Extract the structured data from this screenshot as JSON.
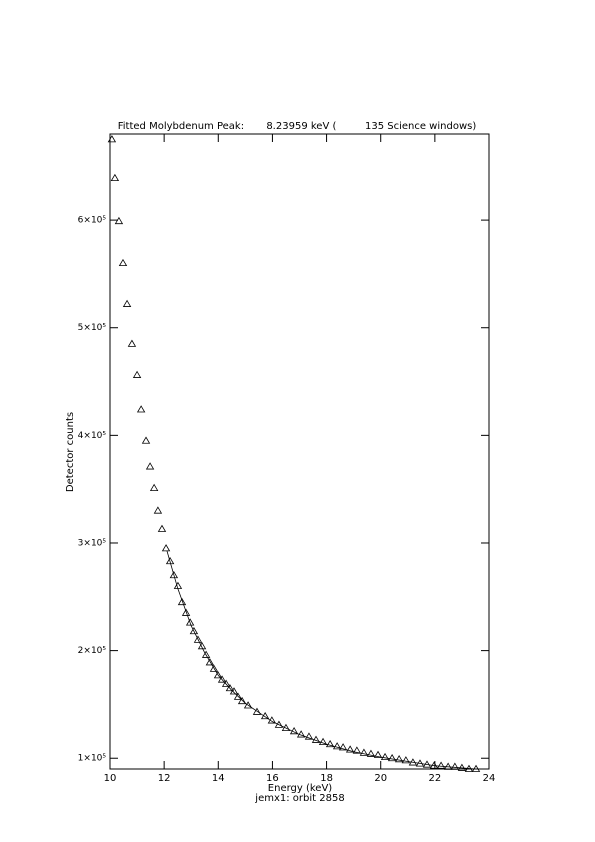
{
  "chart_data": {
    "type": "scatter",
    "title": "Fitted Molybdenum Peak:       8.23959 keV (         135 Science windows)",
    "x_label": "Energy (keV)",
    "subtitle": "jemx1: orbit 2858",
    "y_label": "Detector counts",
    "xlim": [
      10,
      24
    ],
    "xticks": [
      10,
      12,
      14,
      16,
      18,
      20,
      22,
      24
    ],
    "ylim": [
      90000,
      680000
    ],
    "yticks": [
      {
        "value": 100000,
        "label": "1×10⁵"
      },
      {
        "value": 200000,
        "label": "2×10⁵"
      },
      {
        "value": 300000,
        "label": "3×10⁵"
      },
      {
        "value": 400000,
        "label": "4×10⁵"
      },
      {
        "value": 500000,
        "label": "5×10⁵"
      },
      {
        "value": 600000,
        "label": "6×10⁵"
      }
    ],
    "color": "#000000",
    "series": [
      {
        "marker": "triangle",
        "x": [
          10.07,
          10.18,
          10.33,
          10.48,
          10.63,
          10.81,
          11.0,
          11.15,
          11.33,
          11.48,
          11.63,
          11.77,
          11.92,
          12.07,
          12.22,
          12.36,
          12.51,
          12.66,
          12.81,
          12.96,
          13.1,
          13.25,
          13.4,
          13.55,
          13.69,
          13.84,
          13.99,
          14.14,
          14.29,
          14.43,
          14.58,
          14.73,
          14.88,
          15.1,
          15.43,
          15.73,
          15.98,
          16.24,
          16.5,
          16.8,
          17.06,
          17.35,
          17.61,
          17.87,
          18.13,
          18.39,
          18.61,
          18.87,
          19.12,
          19.38,
          19.64,
          19.9,
          20.16,
          20.42,
          20.68,
          20.93,
          21.19,
          21.45,
          21.71,
          21.97,
          22.23,
          22.49,
          22.74,
          23.0,
          23.26,
          23.52
        ],
        "values": [
          675000,
          639000,
          599000,
          560000,
          522000,
          485000,
          456000,
          424000,
          395000,
          371000,
          351000,
          330000,
          313000,
          295000,
          283000,
          270000,
          260000,
          245000,
          235000,
          226000,
          218000,
          210000,
          204000,
          196000,
          189000,
          183000,
          177000,
          173000,
          169000,
          165000,
          162000,
          157000,
          153000,
          149000,
          143000,
          139000,
          135000,
          131000,
          128000,
          125000,
          122000,
          120000,
          117000,
          115000,
          113000,
          111000,
          110000,
          108000,
          107000,
          105000,
          104000,
          103000,
          101000,
          100000,
          99000,
          98000,
          96000,
          95000,
          94000,
          93000,
          93000,
          92000,
          92000,
          91000,
          90000,
          90000
        ]
      },
      {
        "marker": "line",
        "x": [
          12.1,
          12.5,
          13,
          13.5,
          14,
          14.5,
          15,
          16,
          17,
          18,
          19,
          20,
          21,
          22,
          23,
          23.5
        ],
        "values": [
          293000,
          258000,
          223000,
          198000,
          177000,
          163000,
          151000,
          134000,
          122000,
          113000,
          106000,
          101000,
          97000,
          93000,
          91000,
          90000
        ]
      }
    ]
  }
}
